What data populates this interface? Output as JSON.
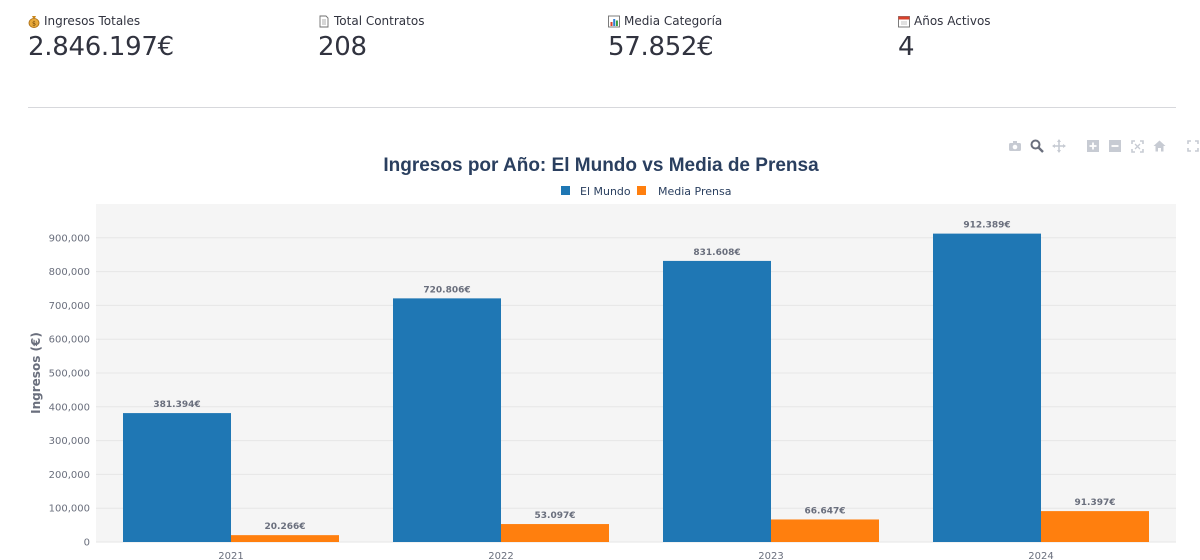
{
  "metrics": [
    {
      "label": "Ingresos Totales",
      "value": "2.846.197€",
      "icon": "money-bag-icon"
    },
    {
      "label": "Total Contratos",
      "value": "208",
      "icon": "document-icon"
    },
    {
      "label": "Media Categoría",
      "value": "57.852€",
      "icon": "bar-chart-icon"
    },
    {
      "label": "Años Activos",
      "value": "4",
      "icon": "calendar-icon"
    }
  ],
  "colors": {
    "el_mundo": "#1f77b4",
    "media_prensa": "#ff7f0e",
    "plot_bg": "#f5f5f5",
    "grid": "#e6e6e6"
  },
  "chart_data": {
    "type": "bar",
    "title": "Ingresos por Año: El Mundo vs Media de Prensa",
    "categories": [
      "2021",
      "2022",
      "2023",
      "2024"
    ],
    "series": [
      {
        "name": "El Mundo",
        "values": [
          381394,
          720806,
          831608,
          912389
        ],
        "labels": [
          "381.394€",
          "720.806€",
          "831.608€",
          "912.389€"
        ]
      },
      {
        "name": "Media Prensa",
        "values": [
          20266,
          53097,
          66647,
          91397
        ],
        "labels": [
          "20.266€",
          "53.097€",
          "66.647€",
          "91.397€"
        ]
      }
    ],
    "xlabel": "",
    "ylabel": "Ingresos (€)",
    "ylim": [
      0,
      1000000
    ],
    "yticks": [
      0,
      100000,
      200000,
      300000,
      400000,
      500000,
      600000,
      700000,
      800000,
      900000
    ],
    "ytick_labels": [
      "0",
      "100,000",
      "200,000",
      "300,000",
      "400,000",
      "500,000",
      "600,000",
      "700,000",
      "800,000",
      "900,000"
    ],
    "legend_position": "top-center",
    "grid": true
  }
}
